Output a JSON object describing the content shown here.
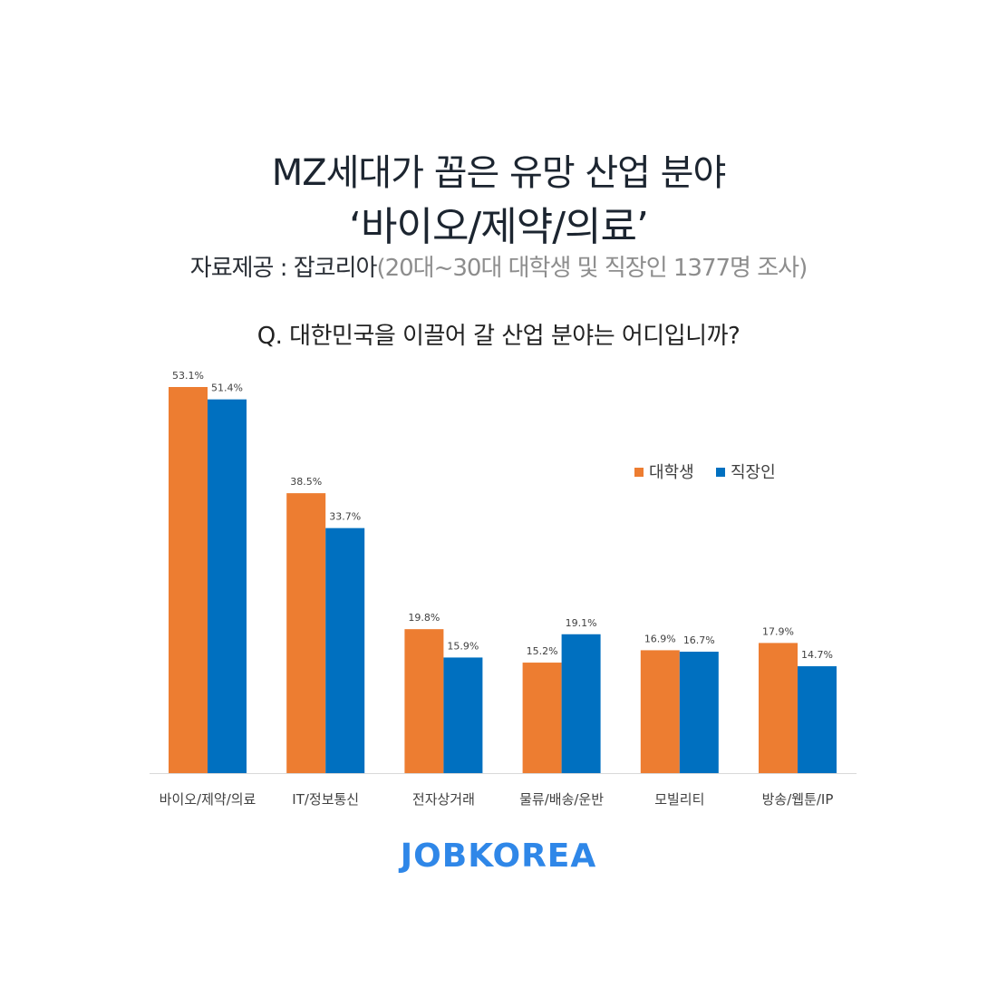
{
  "header": {
    "title_line1": "MZ세대가 꼽은 유망 산업 분야",
    "title_line2": "‘바이오/제약/의료’",
    "source_label": "자료제공 : 잡코리아",
    "source_detail": "(20대~30대 대학생 및 직장인 1377명 조사)"
  },
  "question": "Q. 대한민국을 이끌어 갈 산업 분야는 어디입니까?",
  "chart_data": {
    "type": "bar",
    "categories": [
      "바이오/제약/의료",
      "IT/정보통신",
      "전자상거래",
      "물류/배송/운반",
      "모빌리티",
      "방송/웹툰/IP"
    ],
    "series": [
      {
        "name": "대학생",
        "values": [
          53.1,
          38.5,
          19.8,
          15.2,
          16.9,
          17.9
        ],
        "labels": [
          "53.1%",
          "38.5%",
          "19.8%",
          "15.2%",
          "16.9%",
          "17.9%"
        ],
        "color": "#ed7d31"
      },
      {
        "name": "직장인",
        "values": [
          51.4,
          33.7,
          15.9,
          19.1,
          16.7,
          14.7
        ],
        "labels": [
          "51.4%",
          "33.7%",
          "15.9%",
          "19.1%",
          "16.7%",
          "14.7%"
        ],
        "color": "#0070c0"
      }
    ],
    "ylim": [
      0,
      55
    ],
    "legend": "top-right",
    "grid": false
  },
  "logo": "JOBKOREA"
}
